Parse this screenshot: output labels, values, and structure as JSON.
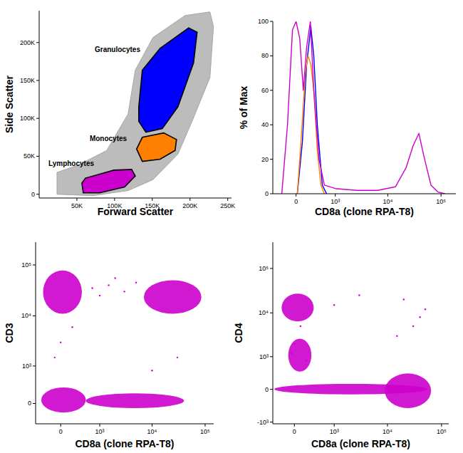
{
  "chart_data": [
    {
      "type": "scatter",
      "xlabel": "Forward Scatter",
      "ylabel": "Side Scatter",
      "xlim": [
        0,
        255000
      ],
      "ylim": [
        -5000,
        242000
      ],
      "xticks": [
        {
          "value": 50000,
          "label": "50K"
        },
        {
          "value": 100000,
          "label": "100K"
        },
        {
          "value": 150000,
          "label": "150K"
        },
        {
          "value": 200000,
          "label": "200K"
        },
        {
          "value": 250000,
          "label": "250K"
        }
      ],
      "yticks": [
        0,
        {
          "value": 50000,
          "label": "50K"
        },
        {
          "value": 100000,
          "label": "100K"
        },
        {
          "value": 150000,
          "label": "150K"
        },
        {
          "value": 200000,
          "label": "200K"
        }
      ],
      "regions": [
        {
          "color": "#a6a6a6",
          "x": [
            23600,
            23600,
            51900,
            89600,
            117900,
            127400,
            150900,
            193400,
            226400,
            231100,
            226400,
            202800,
            184000,
            150900,
            117900,
            70800
          ],
          "y": [
            0,
            28800,
            38500,
            57700,
            105800,
            163500,
            206700,
            235600,
            240400,
            221200,
            153800,
            96200,
            52900,
            19200,
            4800,
            -1900
          ]
        }
      ],
      "gates": [
        {
          "label": "Granulocytes",
          "color": "#0000ff",
          "x": [
            132000,
            136800,
            160400,
            198100,
            209400,
            204700,
            184000,
            163200,
            141500,
            132000
          ],
          "y": [
            115000,
            163500,
            192300,
            219200,
            213500,
            173100,
            115400,
            86500,
            81700,
            96200
          ]
        },
        {
          "label": "Monocytes",
          "color": "#ff8000",
          "x": [
            129200,
            136800,
            165100,
            182100,
            180200,
            160400,
            136800
          ],
          "y": [
            59600,
            75000,
            80800,
            72100,
            57700,
            46200,
            43300
          ]
        },
        {
          "label": "Lymphocytes",
          "color": "#cc00cc",
          "x": [
            56600,
            61300,
            99100,
            122600,
            127400,
            113200,
            80200,
            58500
          ],
          "y": [
            14400,
            21200,
            31700,
            32700,
            24000,
            9600,
            1900,
            1900
          ]
        }
      ]
    },
    {
      "type": "line",
      "xlabel": "CD8a (clone RPA-T8)",
      "ylabel": "% of Max",
      "log": "x",
      "xlim": [
        -450,
        190000
      ],
      "ylim": [
        0,
        100
      ],
      "xticks": [
        0,
        {
          "value": 1000,
          "label": "10³"
        },
        {
          "value": 10000,
          "label": "10⁴"
        },
        {
          "value": 100000,
          "label": "10⁵"
        }
      ],
      "yticks": [
        0,
        20,
        40,
        60,
        80,
        100
      ],
      "series": [
        {
          "color": "#0000ff",
          "x": [
            20,
            105,
            180,
            260,
            320,
            400,
            530,
            660
          ],
          "values": [
            0,
            30,
            75,
            97,
            80,
            40,
            5,
            0
          ]
        },
        {
          "color": "#ff8000",
          "x": [
            20,
            80,
            155,
            205,
            260,
            320,
            400,
            490,
            590
          ],
          "values": [
            0,
            30,
            70,
            80,
            75,
            60,
            25,
            5,
            0
          ]
        },
        {
          "color": "#cc00cc",
          "x": [
            -250,
            -145,
            -60,
            0,
            60,
            120,
            180,
            250,
            320,
            440,
            590,
            1000,
            2560,
            6500,
            13900,
            22000,
            30000,
            38400,
            47500,
            64600,
            87500,
            119000
          ],
          "values": [
            0,
            40,
            95,
            100,
            90,
            60,
            85,
            100,
            60,
            20,
            5,
            3,
            2,
            2,
            4,
            15,
            28,
            35,
            22,
            5,
            1,
            0
          ]
        }
      ]
    },
    {
      "type": "dotplot",
      "xlabel": "CD8a (clone RPA-T8)",
      "ylabel": "CD3",
      "log": true,
      "color": "#cc00cc",
      "xlim": [
        -500,
        145000
      ],
      "ylim": [
        -400,
        280000
      ],
      "xticks": [
        0,
        {
          "value": 1000,
          "label": "10³"
        },
        {
          "value": 10000,
          "label": "10⁴"
        },
        {
          "value": 100000,
          "label": "10⁵"
        }
      ],
      "yticks": [
        0,
        {
          "value": 1000,
          "label": "10³"
        },
        {
          "value": 10000,
          "label": "10⁴"
        },
        {
          "value": 100000,
          "label": "10⁵"
        }
      ],
      "clusters": [
        {
          "x": [
            -320,
            400
          ],
          "y": [
            11000,
            78000
          ]
        },
        {
          "x": [
            7000,
            85000
          ],
          "y": [
            11000,
            50000
          ]
        },
        {
          "x": [
            -360,
            500
          ],
          "y": [
            -160,
            300
          ]
        },
        {
          "x": [
            500,
            40000
          ],
          "y": [
            -80,
            180
          ]
        }
      ],
      "points": {
        "x": [
          700,
          1500,
          3000,
          5000,
          2000,
          1000,
          0,
          200,
          -100,
          10000,
          30000
        ],
        "y": [
          35000,
          40000,
          30000,
          45000,
          55000,
          25000,
          3000,
          6000,
          1500,
          800,
          1500
        ]
      }
    },
    {
      "type": "dotplot",
      "xlabel": "CD8a (clone RPA-T8)",
      "ylabel": "CD4",
      "log": true,
      "color": "#cc00cc",
      "xlim": [
        -400,
        136000
      ],
      "ylim": [
        -1100,
        390000
      ],
      "xticks": [
        0,
        {
          "value": 1000,
          "label": "10³"
        },
        {
          "value": 10000,
          "label": "10⁴"
        },
        {
          "value": 100000,
          "label": "10⁵"
        }
      ],
      "yticks": [
        {
          "value": -1000,
          "label": "-10³"
        },
        0,
        {
          "value": 1000,
          "label": "10³"
        },
        {
          "value": 10000,
          "label": "10⁴"
        },
        {
          "value": 100000,
          "label": "10⁵"
        }
      ],
      "clusters": [
        {
          "x": [
            -217,
            349
          ],
          "y": [
            6400,
            27000
          ]
        },
        {
          "x": [
            -365,
            55000
          ],
          "y": [
            -100,
            110
          ]
        },
        {
          "x": [
            8900,
            64000
          ],
          "y": [
            -430,
            350
          ]
        },
        {
          "x": [
            -100,
            300
          ],
          "y": [
            400,
            2600
          ]
        }
      ],
      "points": {
        "x": [
          20000,
          30000,
          40000,
          15000,
          50000,
          1000,
          3000,
          0,
          100,
          -50,
          200
        ],
        "y": [
          20000,
          5000,
          8000,
          3000,
          12000,
          15000,
          25000,
          2000,
          5000,
          1200,
          800
        ]
      }
    }
  ]
}
